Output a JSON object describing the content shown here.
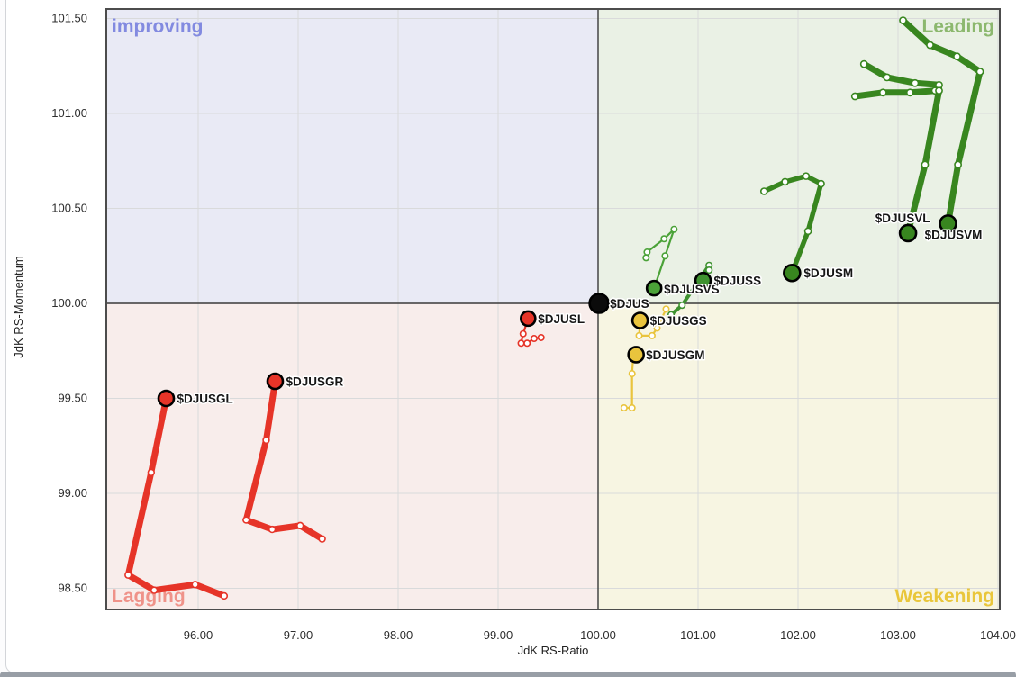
{
  "chart_data": {
    "type": "scatter",
    "subtype": "relative-rotation-graph",
    "xlabel": "JdK RS-Ratio",
    "ylabel": "JdK RS-Momentum",
    "xlim": [
      95.08,
      104.02
    ],
    "ylim": [
      98.39,
      101.55
    ],
    "center": [
      100.0,
      100.0
    ],
    "grid": true,
    "x_ticks": [
      {
        "v": 96,
        "label": "96.00"
      },
      {
        "v": 97,
        "label": "97.00"
      },
      {
        "v": 98,
        "label": "98.00"
      },
      {
        "v": 99,
        "label": "99.00"
      },
      {
        "v": 100,
        "label": "100.00"
      },
      {
        "v": 101,
        "label": "101.00"
      },
      {
        "v": 102,
        "label": "102.00"
      },
      {
        "v": 103,
        "label": "103.00"
      },
      {
        "v": 104,
        "label": "104.00"
      }
    ],
    "y_ticks": [
      {
        "v": 98.5,
        "label": "98.50"
      },
      {
        "v": 99.0,
        "label": "99.00"
      },
      {
        "v": 99.5,
        "label": "99.50"
      },
      {
        "v": 100.0,
        "label": "100.00"
      },
      {
        "v": 100.5,
        "label": "100.50"
      },
      {
        "v": 101.0,
        "label": "101.00"
      },
      {
        "v": 101.5,
        "label": "101.50"
      }
    ],
    "quadrants": [
      {
        "name": "improving",
        "label": "improving",
        "corner": "top-left",
        "bg": "#e9eaf5",
        "text_color": "#828ae0"
      },
      {
        "name": "leading",
        "label": "Leading",
        "corner": "top-right",
        "bg": "#eaf1e5",
        "text_color": "#8cb86e"
      },
      {
        "name": "lagging",
        "label": "Lagging",
        "corner": "bottom-left",
        "bg": "#f8edeb",
        "text_color": "#ef9289"
      },
      {
        "name": "weakening",
        "label": "Weakening",
        "corner": "bottom-right",
        "bg": "#f7f5e2",
        "text_color": "#e9c63b"
      }
    ],
    "series": [
      {
        "symbol": "$DJUS",
        "color": "#0b0b0b",
        "tail_width": 0,
        "marker_r": 0,
        "head_r": 10.5,
        "head": [
          100.01,
          100.0
        ],
        "points": [],
        "label_anchor": "start",
        "label_dx": 12,
        "label_dy": 5
      },
      {
        "symbol": "$DJUSL",
        "color": "#e63428",
        "tail_width": 2.2,
        "marker_r": 3.2,
        "head_r": 8,
        "head": [
          99.3,
          99.92
        ],
        "points": [
          [
            99.43,
            99.82
          ],
          [
            99.36,
            99.815
          ],
          [
            99.29,
            99.79
          ],
          [
            99.23,
            99.79
          ],
          [
            99.25,
            99.84
          ]
        ],
        "label_anchor": "start",
        "label_dx": 11,
        "label_dy": 5
      },
      {
        "symbol": "$DJUSGL",
        "color": "#e63428",
        "tail_width": 7,
        "marker_r": 3.4,
        "head_r": 8.5,
        "head": [
          95.68,
          99.5
        ],
        "points": [
          [
            96.26,
            98.46
          ],
          [
            95.97,
            98.52
          ],
          [
            95.56,
            98.49
          ],
          [
            95.3,
            98.57
          ],
          [
            95.53,
            99.11
          ]
        ],
        "label_anchor": "start",
        "label_dx": 12,
        "label_dy": 5
      },
      {
        "symbol": "$DJUSGR",
        "color": "#e63428",
        "tail_width": 7,
        "marker_r": 3.4,
        "head_r": 8.5,
        "head": [
          96.77,
          99.59
        ],
        "points": [
          [
            97.24,
            98.76
          ],
          [
            97.02,
            98.83
          ],
          [
            96.74,
            98.81
          ],
          [
            96.48,
            98.86
          ],
          [
            96.68,
            99.28
          ]
        ],
        "label_anchor": "start",
        "label_dx": 12,
        "label_dy": 5
      },
      {
        "symbol": "$DJUSGS",
        "color": "#e9c43d",
        "tail_width": 2.2,
        "marker_r": 3.2,
        "head_r": 8.5,
        "head": [
          100.42,
          99.91
        ],
        "points": [
          [
            100.68,
            99.97
          ],
          [
            100.59,
            99.87
          ],
          [
            100.54,
            99.83
          ],
          [
            100.41,
            99.83
          ]
        ],
        "label_anchor": "start",
        "label_dx": 11,
        "label_dy": 5
      },
      {
        "symbol": "$DJUSGM",
        "color": "#e9c43d",
        "tail_width": 2.2,
        "marker_r": 3.2,
        "head_r": 8.5,
        "head": [
          100.38,
          99.73
        ],
        "points": [
          [
            100.26,
            99.45
          ],
          [
            100.34,
            99.45
          ],
          [
            100.34,
            99.63
          ],
          [
            100.35,
            99.71
          ]
        ],
        "label_anchor": "start",
        "label_dx": 11,
        "label_dy": 5
      },
      {
        "symbol": "$DJUSVS",
        "color": "#4ba238",
        "tail_width": 2.2,
        "marker_r": 3.2,
        "head_r": 8,
        "head": [
          100.56,
          100.08
        ],
        "points": [
          [
            100.48,
            100.24
          ],
          [
            100.49,
            100.27
          ],
          [
            100.66,
            100.34
          ],
          [
            100.76,
            100.39
          ],
          [
            100.67,
            100.25
          ]
        ],
        "label_anchor": "start",
        "label_dx": 11,
        "label_dy": 6
      },
      {
        "symbol": "$DJUSS",
        "color": "#3f9230",
        "tail_width": 4,
        "marker_r": 3.3,
        "head_r": 8.5,
        "head": [
          101.05,
          100.12
        ],
        "points": [
          [
            100.73,
            99.94
          ],
          [
            100.84,
            99.99
          ],
          [
            101.11,
            100.2
          ],
          [
            101.11,
            100.175
          ]
        ],
        "label_anchor": "start",
        "label_dx": 12,
        "label_dy": 5
      },
      {
        "symbol": "$DJUSM",
        "color": "#38861f",
        "tail_width": 5.5,
        "marker_r": 3.5,
        "head_r": 9,
        "head": [
          101.94,
          100.16
        ],
        "points": [
          [
            101.66,
            100.59
          ],
          [
            101.87,
            100.64
          ],
          [
            102.08,
            100.67
          ],
          [
            102.23,
            100.63
          ],
          [
            102.1,
            100.38
          ]
        ],
        "label_anchor": "start",
        "label_dx": 13,
        "label_dy": 5
      },
      {
        "symbol": "$DJUSVL",
        "color": "#38861f",
        "tail_width": 7,
        "marker_r": 3.6,
        "head_r": 9,
        "head": [
          103.1,
          100.37
        ],
        "points": [
          [
            102.66,
            101.26
          ],
          [
            102.89,
            101.19
          ],
          [
            103.17,
            101.16
          ],
          [
            103.41,
            101.15
          ],
          [
            103.41,
            101.12
          ],
          [
            103.27,
            100.73
          ]
        ],
        "points2": [
          [
            102.57,
            101.09
          ],
          [
            102.85,
            101.11
          ],
          [
            103.12,
            101.11
          ],
          [
            103.37,
            101.12
          ]
        ],
        "label_anchor": "middle",
        "label_dx": -6,
        "label_dy": -12
      },
      {
        "symbol": "$DJUSVM",
        "color": "#38861f",
        "tail_width": 7,
        "marker_r": 3.6,
        "head_r": 9,
        "head": [
          103.5,
          100.42
        ],
        "points": [
          [
            103.05,
            101.49
          ],
          [
            103.32,
            101.36
          ],
          [
            103.59,
            101.3
          ],
          [
            103.82,
            101.22
          ],
          [
            103.6,
            100.73
          ]
        ],
        "label_anchor": "middle",
        "label_dx": 6,
        "label_dy": 17
      }
    ],
    "style": {
      "grid_color": "#d9dadb",
      "cross_color": "#3a3a3a",
      "border_color": "#4c4c4c",
      "marker_fill": "#ffffff",
      "head_ring": "#000000"
    }
  }
}
